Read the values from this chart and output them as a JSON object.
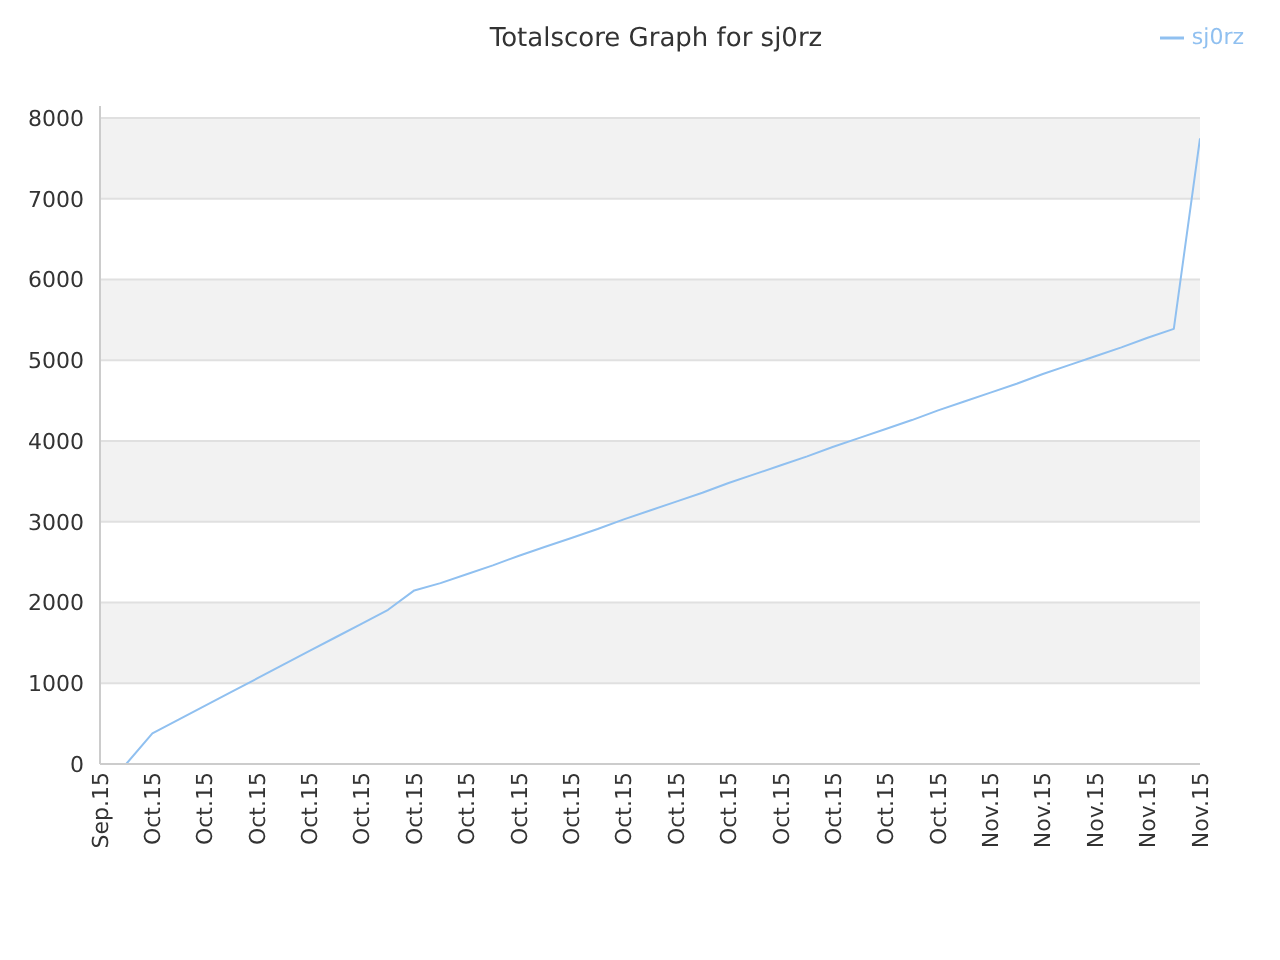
{
  "chart_data": {
    "type": "line",
    "title": "Totalscore Graph for sj0rz",
    "categories": [
      "Sep.15",
      null,
      "Oct.15",
      null,
      "Oct.15",
      null,
      "Oct.15",
      null,
      "Oct.15",
      null,
      "Oct.15",
      null,
      "Oct.15",
      null,
      "Oct.15",
      null,
      "Oct.15",
      null,
      "Oct.15",
      null,
      "Oct.15",
      null,
      "Oct.15",
      null,
      "Oct.15",
      null,
      "Oct.15",
      null,
      "Oct.15",
      null,
      "Oct.15",
      null,
      "Oct.15",
      null,
      "Nov.15",
      null,
      "Nov.15",
      null,
      "Nov.15",
      null,
      "Nov.15",
      null,
      "Nov.15"
    ],
    "series": [
      {
        "name": "sj0rz",
        "color": "#90c0f0",
        "values": [
          null,
          0,
          380,
          550,
          720,
          890,
          1060,
          1230,
          1400,
          1570,
          1740,
          1910,
          2150,
          2240,
          2350,
          2460,
          2580,
          2690,
          2800,
          2910,
          3030,
          3140,
          3250,
          3360,
          3480,
          3590,
          3700,
          3810,
          3930,
          4040,
          4150,
          4260,
          4380,
          4490,
          4600,
          4710,
          4830,
          4940,
          5050,
          5160,
          5280,
          5390,
          7750
        ]
      }
    ],
    "ylim": [
      0,
      8150
    ],
    "yticks": [
      0,
      1000,
      2000,
      3000,
      4000,
      5000,
      6000,
      7000,
      8000
    ],
    "grid": "y",
    "legend": "top right",
    "marker": "none",
    "line_style": "solid"
  }
}
